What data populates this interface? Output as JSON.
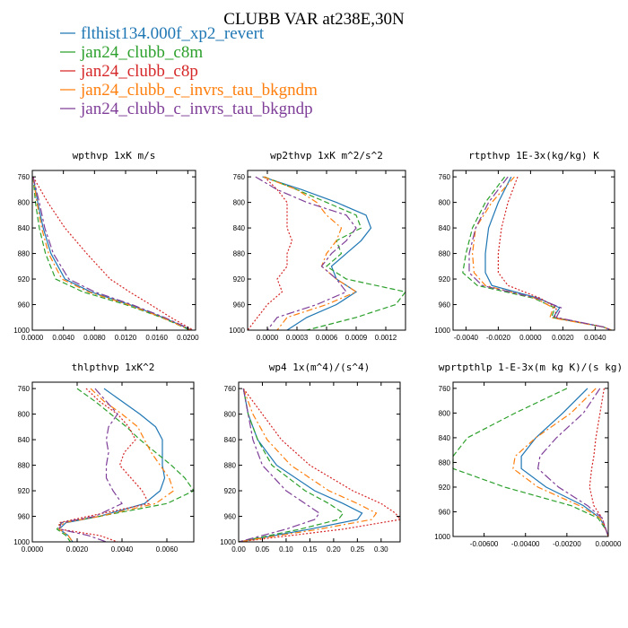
{
  "title": "CLUBB VAR at238E,30N",
  "legend": [
    {
      "label": "flthist134.000f_xp2_revert",
      "color": "#1f77b4",
      "dash": "solid"
    },
    {
      "label": "jan24_clubb_c8m",
      "color": "#2ca02c",
      "dash": "dashed"
    },
    {
      "label": "jan24_clubb_c8p",
      "color": "#d62728",
      "dash": "dotted"
    },
    {
      "label": "jan24_clubb_c_invrs_tau_bkgndm",
      "color": "#ff7f0e",
      "dash": "dashdot"
    },
    {
      "label": "jan24_clubb_c_invrs_tau_bkgndp",
      "color": "#7f3f98",
      "dash": "longdash"
    }
  ],
  "chart_data": [
    {
      "type": "line",
      "title": "wpthvp  1xK m/s",
      "xlim": [
        0,
        0.021
      ],
      "ylim": [
        1000,
        750
      ],
      "xticks": [
        "0.0000",
        "0.0040",
        "0.0080",
        "0.0120",
        "0.0160",
        "0.0200"
      ],
      "xtick_values": [
        0,
        0.004,
        0.008,
        0.012,
        0.016,
        0.02
      ],
      "yticks": [
        760,
        800,
        840,
        880,
        920,
        960,
        1000
      ],
      "y": [
        760,
        800,
        840,
        880,
        920,
        940,
        960,
        980,
        1000
      ],
      "series": [
        {
          "values": [
            0.0001,
            0.0007,
            0.0014,
            0.0024,
            0.0042,
            0.0075,
            0.0125,
            0.0168,
            0.0205
          ]
        },
        {
          "values": [
            0.0001,
            0.0004,
            0.0009,
            0.0017,
            0.003,
            0.0065,
            0.012,
            0.0166,
            0.0203
          ]
        },
        {
          "values": [
            0.0001,
            0.002,
            0.0042,
            0.007,
            0.01,
            0.0125,
            0.0152,
            0.0178,
            0.0207
          ]
        },
        {
          "values": [
            0.0001,
            0.0006,
            0.0012,
            0.0021,
            0.0038,
            0.0072,
            0.0123,
            0.0167,
            0.0204
          ]
        },
        {
          "values": [
            0.0001,
            0.0009,
            0.0016,
            0.0027,
            0.0047,
            0.008,
            0.0128,
            0.017,
            0.0206
          ]
        }
      ]
    },
    {
      "type": "line",
      "title": "wp2thvp  1xK m^2/s^2",
      "xlim": [
        -0.0002,
        0.0014
      ],
      "ylim": [
        1000,
        750
      ],
      "xticks": [
        "0.0000",
        "0.0003",
        "0.0006",
        "0.0009",
        "0.0012"
      ],
      "xtick_values": [
        0,
        0.0003,
        0.0006,
        0.0009,
        0.0012
      ],
      "yticks": [
        760,
        800,
        840,
        880,
        920,
        960,
        1000
      ],
      "y": [
        760,
        780,
        800,
        820,
        840,
        860,
        880,
        900,
        920,
        940,
        960,
        980,
        1000
      ],
      "series": [
        {
          "values": [
            -5e-05,
            0.00035,
            0.0007,
            0.001,
            0.00105,
            0.00095,
            0.0008,
            0.00065,
            0.0007,
            0.0009,
            0.0007,
            0.0004,
            0.0002
          ]
        },
        {
          "values": [
            -3e-05,
            0.0003,
            0.0006,
            0.0009,
            0.00095,
            0.0007,
            0.00075,
            0.0006,
            0.0008,
            0.0014,
            0.0013,
            0.0009,
            0.0004
          ]
        },
        {
          "values": [
            -3e-05,
            0.0001,
            0.0002,
            0.0002,
            0.0002,
            0.00025,
            0.0002,
            0.0002,
            0.0001,
            0.00015,
            0.0,
            -0.0001,
            -0.0002
          ]
        },
        {
          "values": [
            -4e-05,
            0.0003,
            0.0005,
            0.0006,
            0.00075,
            0.0007,
            0.0006,
            0.00055,
            0.0007,
            0.0009,
            0.0006,
            0.0002,
            0.0001
          ]
        },
        {
          "values": [
            -0.00012,
            0.0001,
            0.0004,
            0.0008,
            0.0009,
            0.0008,
            0.00065,
            0.00055,
            0.0007,
            0.0008,
            0.0005,
            0.0001,
            0.0
          ]
        }
      ]
    },
    {
      "type": "line",
      "title": "rtpthvp  1E-3x(kg/kg) K",
      "xlim": [
        -0.0048,
        0.0052
      ],
      "ylim": [
        1000,
        750
      ],
      "xticks": [
        "-0.0040",
        "-0.0020",
        "0.0000",
        "0.0020",
        "0.0040"
      ],
      "xtick_values": [
        -0.004,
        -0.002,
        0,
        0.002,
        0.004
      ],
      "yticks": [
        760,
        800,
        840,
        880,
        920,
        960,
        1000
      ],
      "y": [
        760,
        800,
        840,
        880,
        910,
        930,
        950,
        965,
        980,
        995,
        1000
      ],
      "series": [
        {
          "values": [
            -0.0012,
            -0.002,
            -0.0026,
            -0.0028,
            -0.0028,
            -0.0024,
            0.0005,
            0.0018,
            0.0014,
            0.0045,
            0.005
          ]
        },
        {
          "values": [
            -0.0016,
            -0.0028,
            -0.0036,
            -0.004,
            -0.0042,
            -0.0033,
            0.0002,
            0.0015,
            0.0013,
            0.0045,
            0.005
          ]
        },
        {
          "values": [
            -0.0008,
            -0.0014,
            -0.0018,
            -0.002,
            -0.002,
            -0.0014,
            0.0006,
            0.0016,
            0.0015,
            0.0045,
            0.005
          ]
        },
        {
          "values": [
            -0.001,
            -0.0024,
            -0.0034,
            -0.0036,
            -0.0035,
            -0.0028,
            0.0003,
            0.0014,
            0.0012,
            0.0045,
            0.005
          ]
        },
        {
          "values": [
            -0.0014,
            -0.0026,
            -0.0034,
            -0.0038,
            -0.0038,
            -0.003,
            0.0004,
            0.0019,
            0.0016,
            0.0045,
            0.005
          ]
        }
      ]
    },
    {
      "type": "line",
      "title": "thlpthvp  1xK^2",
      "xlim": [
        0.0,
        0.0072
      ],
      "ylim": [
        1000,
        750
      ],
      "xticks": [
        "0.0000",
        "0.0020",
        "0.0040",
        "0.0060"
      ],
      "xtick_values": [
        0,
        0.002,
        0.004,
        0.006
      ],
      "yticks": [
        760,
        800,
        840,
        880,
        920,
        960,
        1000
      ],
      "y": [
        760,
        780,
        800,
        820,
        840,
        860,
        880,
        900,
        920,
        940,
        960,
        970,
        980,
        990,
        1000
      ],
      "series": [
        {
          "values": [
            0.0032,
            0.004,
            0.0048,
            0.0055,
            0.0058,
            0.0058,
            0.0058,
            0.0059,
            0.0057,
            0.005,
            0.003,
            0.0015,
            0.0012,
            0.0016,
            0.0018
          ]
        },
        {
          "values": [
            0.002,
            0.0028,
            0.0035,
            0.0042,
            0.0048,
            0.0055,
            0.0062,
            0.0068,
            0.0072,
            0.006,
            0.003,
            0.0013,
            0.0011,
            0.0015,
            0.0017
          ]
        },
        {
          "values": [
            0.0024,
            0.003,
            0.0038,
            0.0043,
            0.0046,
            0.0041,
            0.0039,
            0.0044,
            0.0049,
            0.0052,
            0.0025,
            0.0012,
            0.0012,
            0.003,
            0.0038
          ]
        },
        {
          "values": [
            0.0026,
            0.0032,
            0.004,
            0.0047,
            0.005,
            0.0053,
            0.0057,
            0.0061,
            0.0063,
            0.0055,
            0.003,
            0.0014,
            0.0012,
            0.0016,
            0.0018
          ]
        },
        {
          "values": [
            0.0028,
            0.0033,
            0.0038,
            0.0034,
            0.0033,
            0.0034,
            0.0033,
            0.0033,
            0.0036,
            0.004,
            0.0028,
            0.0013,
            0.0012,
            0.0025,
            0.0033
          ]
        }
      ]
    },
    {
      "type": "line",
      "title": "wp4  1x(m^4)/(s^4)",
      "xlim": [
        0.0,
        0.34
      ],
      "ylim": [
        1000,
        750
      ],
      "xticks": [
        "0.00",
        "0.05",
        "0.10",
        "0.15",
        "0.20",
        "0.25",
        "0.30"
      ],
      "xtick_values": [
        0,
        0.05,
        0.1,
        0.15,
        0.2,
        0.25,
        0.3
      ],
      "yticks": [
        760,
        800,
        840,
        880,
        920,
        960,
        1000
      ],
      "y": [
        760,
        800,
        840,
        880,
        920,
        940,
        955,
        965,
        980,
        1000
      ],
      "series": [
        {
          "values": [
            0.01,
            0.02,
            0.04,
            0.08,
            0.16,
            0.22,
            0.26,
            0.25,
            0.15,
            0.0
          ]
        },
        {
          "values": [
            0.01,
            0.02,
            0.04,
            0.07,
            0.14,
            0.19,
            0.22,
            0.21,
            0.13,
            0.0
          ]
        },
        {
          "values": [
            0.01,
            0.05,
            0.09,
            0.15,
            0.24,
            0.3,
            0.33,
            0.34,
            0.22,
            0.0
          ]
        },
        {
          "values": [
            0.01,
            0.03,
            0.06,
            0.11,
            0.19,
            0.25,
            0.29,
            0.28,
            0.17,
            0.0
          ]
        },
        {
          "values": [
            0.01,
            0.02,
            0.03,
            0.05,
            0.1,
            0.14,
            0.17,
            0.16,
            0.1,
            0.0
          ]
        }
      ]
    },
    {
      "type": "line",
      "title": "wprtpthlp  1-E-3x(m kg K)/(s kg)",
      "xlim": [
        -0.0075,
        0.0
      ],
      "ylim": [
        1000,
        750
      ],
      "xticks": [
        "-0.00600",
        "-0.00400",
        "-0.00200",
        "0.00000"
      ],
      "xtick_values": [
        -0.006,
        -0.004,
        -0.002,
        0
      ],
      "yticks": [
        760,
        800,
        840,
        880,
        920,
        960,
        1000
      ],
      "y": [
        760,
        800,
        840,
        870,
        890,
        920,
        950,
        970,
        990,
        1000
      ],
      "series": [
        {
          "values": [
            -0.001,
            -0.0022,
            -0.0035,
            -0.0042,
            -0.0042,
            -0.003,
            -0.0012,
            -0.0004,
            -0.0001,
            0.0
          ]
        },
        {
          "values": [
            -0.002,
            -0.0045,
            -0.0068,
            -0.0075,
            -0.0075,
            -0.005,
            -0.0018,
            -0.0005,
            -0.0001,
            0.0
          ]
        },
        {
          "values": [
            -0.0002,
            -0.0004,
            -0.0006,
            -0.0007,
            -0.0008,
            -0.0009,
            -0.0007,
            -0.0003,
            -0.0001,
            0.0
          ]
        },
        {
          "values": [
            -0.0006,
            -0.0018,
            -0.0035,
            -0.0045,
            -0.0046,
            -0.0034,
            -0.0014,
            -0.0004,
            -0.0001,
            0.0
          ]
        },
        {
          "values": [
            -0.0004,
            -0.0012,
            -0.0025,
            -0.0033,
            -0.0034,
            -0.0024,
            -0.001,
            -0.0003,
            -0.0001,
            0.0
          ]
        }
      ]
    }
  ]
}
